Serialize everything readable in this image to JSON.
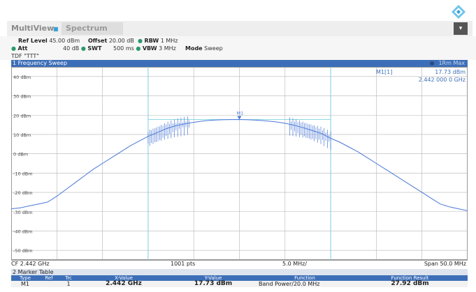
{
  "app": {
    "tabs": [
      "MultiView",
      "Spectrum"
    ],
    "menu_icon": "chevron-down-icon",
    "logo_icon": "brand-diamond-icon"
  },
  "settings": {
    "ref_level_label": "Ref Level",
    "ref_level_value": "45.00 dBm",
    "offset_label": "Offset",
    "offset_value": "20.00 dB",
    "rbw_label": "RBW",
    "rbw_value": "1 MHz",
    "att_label": "Att",
    "att_value": "40 dB",
    "swt_label": "SWT",
    "swt_value": "500 ms",
    "vbw_label": "VBW",
    "vbw_value": "3 MHz",
    "mode_label": "Mode",
    "mode_value": "Sweep",
    "tdf": "TDF \"TTT\""
  },
  "panel": {
    "title": "1 Frequency Sweep",
    "trace_mode": "1Rm Max"
  },
  "marker_readout": {
    "label": "M1[1]",
    "level": "17.73 dBm",
    "freq": "2.442 000 0 GHz"
  },
  "footer": {
    "cf": "CF 2.442 GHz",
    "pts": "1001 pts",
    "div": "5.0 MHz/",
    "span": "Span 50.0 MHz"
  },
  "marker_table": {
    "title": "2 Marker Table",
    "headers": [
      "Type",
      "Ref",
      "Trc",
      "X-Value",
      "Y-Value",
      "Function",
      "Function Result"
    ],
    "row": [
      "M1",
      "",
      "1",
      "2.442 GHz",
      "17.73 dBm",
      "Band Power/20.0 MHz",
      "27.92 dBm"
    ]
  },
  "colors": {
    "trace": "#4a78d8",
    "band_line": "#7fd3e0",
    "title_bar": "#3d6fb8",
    "grid": "#b4b4b4"
  },
  "chart_data": {
    "type": "line",
    "x_unit": "GHz",
    "y_unit": "dBm",
    "xlim": [
      2.417,
      2.467
    ],
    "ylim": [
      -55,
      45
    ],
    "x_ticks_div": 0.005,
    "y_ticks": [
      40,
      30,
      20,
      10,
      0,
      -10,
      -20,
      -30,
      -40,
      -50
    ],
    "y_tick_labels": [
      "40 dBm",
      "30 dBm",
      "20 dBm",
      "10 dBm",
      "0 dBm",
      "-10 dBm",
      "-20 dBm",
      "-30 dBm",
      "-40 dBm",
      "-50 dBm"
    ],
    "band_edges_ghz": [
      2.432,
      2.452
    ],
    "grid": true,
    "series": [
      {
        "x": [
          2.417,
          2.418,
          2.419,
          2.42,
          2.421,
          2.422,
          2.423,
          2.424,
          2.425,
          2.426,
          2.427,
          2.428,
          2.429,
          2.43,
          2.431,
          2.432,
          2.433,
          2.434,
          2.435,
          2.436,
          2.437,
          2.438,
          2.439,
          2.44,
          2.441,
          2.442,
          2.443,
          2.444,
          2.445,
          2.446,
          2.447,
          2.448,
          2.449,
          2.45,
          2.451,
          2.452,
          2.453,
          2.454,
          2.455,
          2.456,
          2.457,
          2.458,
          2.459,
          2.46,
          2.461,
          2.462,
          2.463,
          2.464,
          2.465,
          2.466,
          2.467
        ],
        "y": [
          -28.5,
          -28,
          -27,
          -26,
          -25,
          -22,
          -18.5,
          -15,
          -11.5,
          -8,
          -5,
          -2,
          1,
          4,
          6.5,
          9,
          11,
          13,
          14.5,
          15.5,
          16.3,
          17,
          17.4,
          17.6,
          17.7,
          17.73,
          17.6,
          17.4,
          17,
          16.5,
          15.8,
          14.8,
          13.5,
          12,
          10.5,
          8,
          6,
          3.5,
          1,
          -2,
          -5,
          -8,
          -11,
          -14,
          -17,
          -20,
          -23,
          -26,
          -27.5,
          -28.5,
          -29.5
        ]
      }
    ],
    "marker": {
      "label": "M1",
      "x": 2.442,
      "y": 17.73
    }
  }
}
